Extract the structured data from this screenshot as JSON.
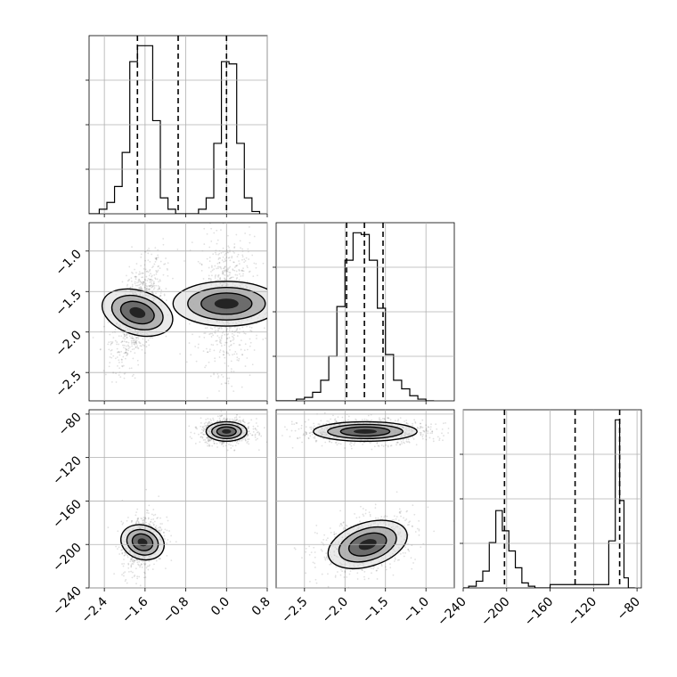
{
  "chart_data": {
    "type": "corner",
    "grid": true,
    "parameters": [
      {
        "key": "p1",
        "range": [
          -2.7,
          0.8
        ],
        "ticks": [
          -2.4,
          -1.6,
          -0.8,
          0.0,
          0.8
        ],
        "tick_labels": [
          "−2.4",
          "−1.6",
          "−0.8",
          "0.0",
          "0.8"
        ],
        "quantiles": [
          -1.75,
          -0.95,
          0.0
        ]
      },
      {
        "key": "p2",
        "range": [
          -2.85,
          -0.65
        ],
        "ticks": [
          -2.5,
          -2.0,
          -1.5,
          -1.0
        ],
        "tick_labels": [
          "−2.5",
          "−2.0",
          "−1.5",
          "−1.0"
        ],
        "quantiles": [
          -1.98,
          -1.76,
          -1.53
        ]
      },
      {
        "key": "p3",
        "range": [
          -240,
          -76
        ],
        "ticks": [
          -240,
          -200,
          -160,
          -120,
          -80
        ],
        "tick_labels": [
          "−240",
          "−200",
          "−160",
          "−120",
          "−80"
        ],
        "quantiles": [
          -202,
          -137,
          -96
        ]
      }
    ],
    "histograms": [
      {
        "param": 0,
        "edges": [
          -2.7,
          -2.5,
          -2.35,
          -2.2,
          -2.05,
          -1.9,
          -1.75,
          -1.6,
          -1.45,
          -1.3,
          -1.15,
          -1.0,
          -0.7,
          -0.55,
          -0.4,
          -0.25,
          -0.1,
          0.05,
          0.2,
          0.35,
          0.5,
          0.65
        ],
        "counts": [
          0.0,
          0.02,
          0.05,
          0.12,
          0.27,
          0.67,
          0.74,
          0.74,
          0.41,
          0.07,
          0.02,
          0.0,
          0.0,
          0.02,
          0.07,
          0.31,
          0.67,
          0.66,
          0.31,
          0.07,
          0.01
        ]
      },
      {
        "param": 1,
        "edges": [
          -2.9,
          -2.6,
          -2.5,
          -2.4,
          -2.3,
          -2.2,
          -2.1,
          -2.0,
          -1.9,
          -1.8,
          -1.7,
          -1.6,
          -1.5,
          -1.4,
          -1.3,
          -1.2,
          -1.1,
          -1.0,
          -0.9
        ],
        "counts": [
          0.0,
          0.01,
          0.02,
          0.05,
          0.12,
          0.26,
          0.55,
          0.82,
          0.98,
          0.97,
          0.82,
          0.54,
          0.27,
          0.12,
          0.07,
          0.03,
          0.01,
          0.0
        ]
      },
      {
        "param": 2,
        "edges": [
          -240,
          -235,
          -228,
          -222,
          -216,
          -210,
          -204,
          -198,
          -192,
          -186,
          -180,
          -174,
          -168,
          -160,
          -106,
          -100,
          -96,
          -92,
          -88,
          -82
        ],
        "counts": [
          0.0,
          0.01,
          0.04,
          0.1,
          0.27,
          0.46,
          0.34,
          0.22,
          0.12,
          0.03,
          0.01,
          0.0,
          0.0,
          0.02,
          0.28,
          1.0,
          0.52,
          0.06,
          0.0
        ]
      }
    ],
    "joint_modes": [
      {
        "x": 0,
        "y": 1,
        "modes": [
          {
            "cx": -1.75,
            "cy": -1.76,
            "sx": 0.2,
            "sy": 0.26,
            "rho": 0.55,
            "weight": 1.0
          },
          {
            "cx": 0.0,
            "cy": -1.65,
            "sx": 0.22,
            "sy": 0.33,
            "rho": 0.0,
            "weight": 0.85
          }
        ]
      },
      {
        "x": 0,
        "y": 2,
        "modes": [
          {
            "cx": -1.65,
            "cy": -198,
            "sx": 0.16,
            "sy": 11,
            "rho": 0.3,
            "weight": 0.8
          },
          {
            "cx": 0.0,
            "cy": -96,
            "sx": 0.2,
            "sy": 4.5,
            "rho": 0.0,
            "weight": 1.0
          }
        ]
      },
      {
        "x": 1,
        "y": 2,
        "modes": [
          {
            "cx": -1.75,
            "cy": -96,
            "sx": 0.32,
            "sy": 4.5,
            "rho": 0.0,
            "weight": 1.0
          },
          {
            "cx": -1.72,
            "cy": -200,
            "sx": 0.24,
            "sy": 11,
            "rho": 0.35,
            "weight": 0.8
          }
        ]
      }
    ]
  }
}
